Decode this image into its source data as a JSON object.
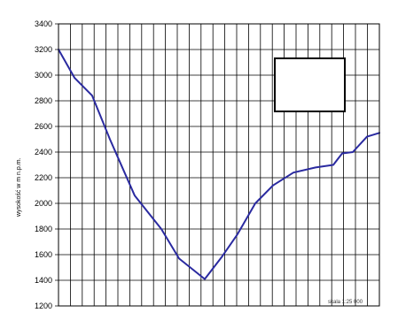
{
  "chart_data": {
    "type": "line",
    "title": "",
    "xlabel": "",
    "ylabel": "wysokość w m n.p.m.",
    "ylim": [
      1200,
      3400
    ],
    "yticks": [
      3400,
      3200,
      3000,
      2800,
      2600,
      2400,
      2200,
      2000,
      1800,
      1600,
      1400,
      1200
    ],
    "grid": true,
    "legend": "none",
    "scale_note": "skala 1:25 000",
    "series": [
      {
        "color": "#2a2aa0",
        "x": [
          0,
          1,
          2,
          3,
          4,
          5,
          6,
          7,
          8,
          9,
          10,
          11,
          12,
          13,
          14,
          15,
          16,
          17,
          18,
          19,
          20,
          21,
          22,
          23,
          24,
          25,
          26,
          27,
          28,
          29,
          30
        ],
        "values": [
          3200,
          2980,
          2840,
          2500,
          2060,
          1800,
          1570,
          1410,
          1580,
          1760,
          2000,
          2140,
          2240,
          2280,
          2300,
          2390,
          2530,
          2540,
          2540,
          2540,
          2540,
          2540,
          2540,
          2540,
          2540,
          2540,
          2540,
          2540,
          2540,
          2540,
          2540
        ]
      }
    ]
  }
}
